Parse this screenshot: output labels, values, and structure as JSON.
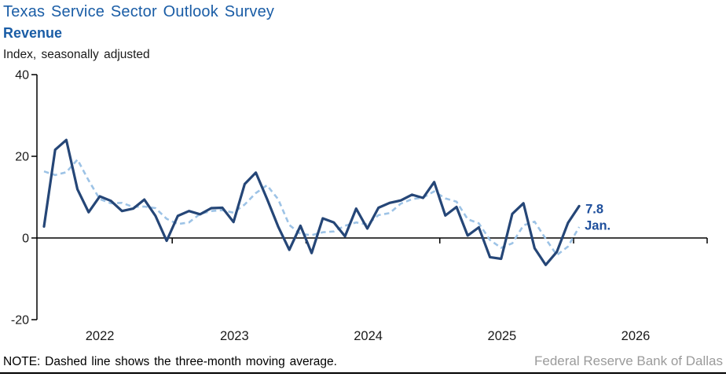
{
  "chart_data": {
    "type": "line",
    "title": "Texas Service Sector Outlook Survey",
    "subtitle": "Revenue",
    "unit": "Index, seasonally adjusted",
    "ylim": [
      -20,
      40
    ],
    "yticks": [
      40,
      20,
      0,
      -20
    ],
    "x_tick_years": [
      "2022",
      "2023",
      "2024",
      "2025",
      "2026"
    ],
    "grid": false,
    "legend": "none",
    "x_months": [
      "2022-01",
      "2022-02",
      "2022-03",
      "2022-04",
      "2022-05",
      "2022-06",
      "2022-07",
      "2022-08",
      "2022-09",
      "2022-10",
      "2022-11",
      "2022-12",
      "2023-01",
      "2023-02",
      "2023-03",
      "2023-04",
      "2023-05",
      "2023-06",
      "2023-07",
      "2023-08",
      "2023-09",
      "2023-10",
      "2023-11",
      "2023-12",
      "2024-01",
      "2024-02",
      "2024-03",
      "2024-04",
      "2024-05",
      "2024-06",
      "2024-07",
      "2024-08",
      "2024-09",
      "2024-10",
      "2024-11",
      "2024-12",
      "2025-01",
      "2025-02",
      "2025-03",
      "2025-04",
      "2025-05",
      "2025-06",
      "2025-07",
      "2025-08",
      "2025-09",
      "2025-10",
      "2025-11",
      "2025-12",
      "2026-01"
    ],
    "series": [
      {
        "name": "Revenue index",
        "style": "solid",
        "values": [
          2.8,
          21.6,
          24.0,
          11.9,
          6.3,
          10.2,
          9.1,
          6.6,
          7.2,
          9.4,
          5.4,
          -0.7,
          5.4,
          6.6,
          5.8,
          7.3,
          7.4,
          3.9,
          13.2,
          16.0,
          9.6,
          2.8,
          -2.9,
          3.0,
          -3.7,
          4.8,
          3.8,
          0.4,
          7.2,
          2.3,
          7.4,
          8.6,
          9.2,
          10.6,
          9.8,
          13.7,
          5.5,
          7.6,
          0.6,
          2.6,
          -4.7,
          -5.1,
          5.9,
          8.5,
          -2.5,
          -6.6,
          -3.4,
          3.7,
          7.8
        ]
      },
      {
        "name": "Three-month moving average",
        "style": "dashed",
        "values": [
          16.3,
          15.4,
          16.1,
          19.2,
          14.1,
          9.5,
          8.5,
          8.6,
          7.6,
          7.7,
          7.3,
          4.7,
          3.4,
          3.8,
          5.9,
          6.6,
          6.8,
          6.2,
          8.2,
          11.0,
          12.9,
          9.5,
          3.2,
          1.0,
          0.7,
          1.4,
          1.6,
          3.0,
          3.8,
          3.3,
          5.6,
          6.1,
          8.4,
          9.5,
          9.9,
          11.4,
          9.7,
          8.9,
          4.6,
          3.6,
          -0.5,
          -2.4,
          -1.3,
          3.1,
          4.0,
          -0.2,
          -4.2,
          -2.1,
          2.7
        ]
      }
    ],
    "annotation": {
      "value": "7.8",
      "month": "Jan."
    }
  },
  "footer": {
    "note": "NOTE: Dashed line shows the three-month moving average.",
    "source": "Federal Reserve Bank of Dallas"
  },
  "colors": {
    "title_blue": "#1A5DA6",
    "solid_line": "#254677",
    "dashed_line": "#9DC3E6",
    "annotation_blue": "#1E4F9C",
    "axis_black": "#000000",
    "tick_text": "#1a1a1a",
    "source_gray": "#9B9B9B"
  }
}
